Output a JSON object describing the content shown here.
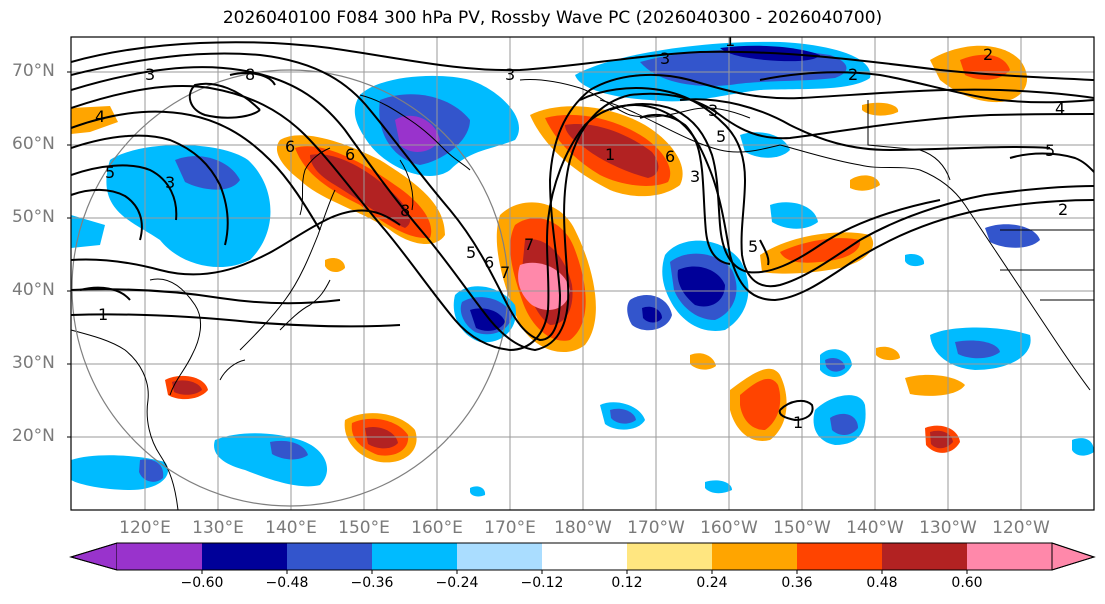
{
  "title": "2026040100 F084 300 hPa PV, Rossby Wave PC (2026040300 - 2026040700)",
  "map": {
    "lat_labels": [
      "70°N",
      "60°N",
      "50°N",
      "40°N",
      "30°N",
      "20°N"
    ],
    "lon_labels": [
      "120°E",
      "130°E",
      "140°E",
      "150°E",
      "160°E",
      "170°E",
      "180°W",
      "170°W",
      "160°W",
      "150°W",
      "140°W",
      "130°W",
      "120°W"
    ],
    "contour_labels": [
      "3",
      "3",
      "8",
      "3",
      "3",
      "3",
      "1",
      "2",
      "4",
      "4",
      "6",
      "6",
      "6",
      "5",
      "5",
      "5",
      "2",
      "1",
      "1",
      "1",
      "2",
      "8",
      "3",
      "5",
      "7",
      "7",
      "6",
      "5"
    ]
  },
  "colorbar": {
    "ticks": [
      "−0.60",
      "−0.48",
      "−0.36",
      "−0.24",
      "−0.12",
      "0.12",
      "0.24",
      "0.36",
      "0.48",
      "0.60"
    ],
    "colors": [
      "#9933cc",
      "#000099",
      "#3355cc",
      "#00bbff",
      "#aaddff",
      "#ffffff",
      "#ffe680",
      "#ffa500",
      "#ff4400",
      "#b22222",
      "#ff88aa"
    ]
  },
  "colors": {
    "neg_strong": "#000099",
    "neg_mid": "#3355cc",
    "neg_light": "#00bbff",
    "pos_light": "#ffa500",
    "pos_mid": "#ff4400",
    "pos_strong": "#b22222",
    "pos_max": "#ff88aa"
  }
}
